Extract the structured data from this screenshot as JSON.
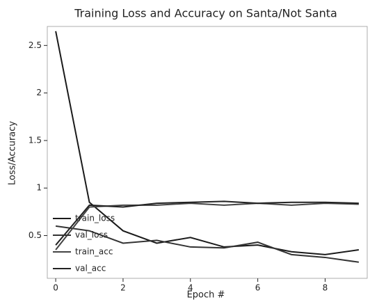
{
  "chart_data": {
    "type": "line",
    "title": "Training Loss and Accuracy on Santa/Not Santa",
    "x_label": "Epoch #",
    "y_label": "Loss/Accuracy",
    "x": [
      0,
      1,
      2,
      3,
      4,
      5,
      6,
      7,
      8,
      9
    ],
    "series": [
      {
        "name": "train_loss",
        "color": "#1a1a1a",
        "values": [
          2.65,
          0.85,
          0.55,
          0.42,
          0.48,
          0.38,
          0.4,
          0.33,
          0.3,
          0.35
        ]
      },
      {
        "name": "val_loss",
        "color": "#333333",
        "values": [
          0.6,
          0.55,
          0.42,
          0.45,
          0.38,
          0.37,
          0.43,
          0.3,
          0.27,
          0.22
        ]
      },
      {
        "name": "train_acc",
        "color": "#444444",
        "values": [
          0.35,
          0.8,
          0.82,
          0.82,
          0.84,
          0.82,
          0.84,
          0.82,
          0.84,
          0.83
        ]
      },
      {
        "name": "val_acc",
        "color": "#222222",
        "values": [
          0.4,
          0.82,
          0.8,
          0.84,
          0.85,
          0.86,
          0.84,
          0.85,
          0.85,
          0.84
        ]
      }
    ],
    "xlim": [
      -0.25,
      9.25
    ],
    "xticks": [
      0,
      2,
      4,
      6,
      8
    ],
    "ylim": [
      0.05,
      2.7
    ],
    "yticks": [
      0.5,
      1.0,
      1.5,
      2.0,
      2.5
    ],
    "legend": "lower left"
  }
}
